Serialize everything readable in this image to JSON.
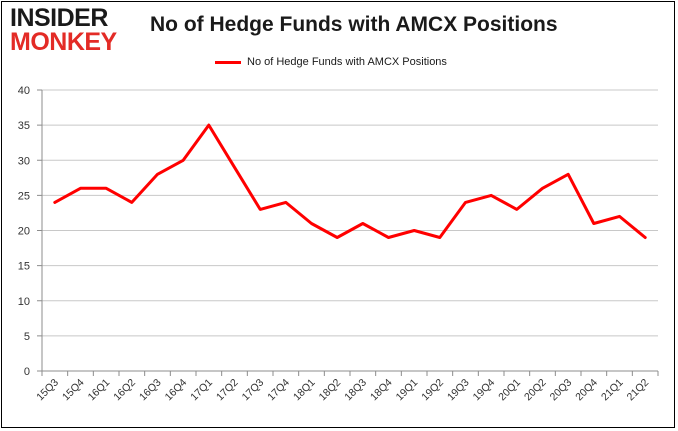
{
  "logo": {
    "line1": "INSIDER",
    "line2": "MONKEY",
    "text_color": "#1a1a1a",
    "accent_color": "#e32b26"
  },
  "chart_data": {
    "type": "line",
    "title": "No of Hedge Funds with AMCX Positions",
    "xlabel": "",
    "ylabel": "",
    "ylim": [
      0,
      40
    ],
    "yticks": [
      0,
      5,
      10,
      15,
      20,
      25,
      30,
      35,
      40
    ],
    "grid": true,
    "legend_placement": "top-center",
    "categories": [
      "15Q3",
      "15Q4",
      "16Q1",
      "16Q2",
      "16Q3",
      "16Q4",
      "17Q1",
      "17Q2",
      "17Q3",
      "17Q4",
      "18Q1",
      "18Q2",
      "18Q3",
      "18Q4",
      "19Q1",
      "19Q2",
      "19Q3",
      "19Q4",
      "20Q1",
      "20Q2",
      "20Q3",
      "20Q4",
      "21Q1",
      "21Q2"
    ],
    "series": [
      {
        "name": "No of Hedge Funds with AMCX Positions",
        "color": "#ff0000",
        "values": [
          24,
          26,
          26,
          24,
          28,
          30,
          35,
          29,
          23,
          24,
          21,
          19,
          21,
          19,
          20,
          19,
          24,
          25,
          23,
          26,
          28,
          21,
          22,
          19
        ]
      }
    ]
  }
}
